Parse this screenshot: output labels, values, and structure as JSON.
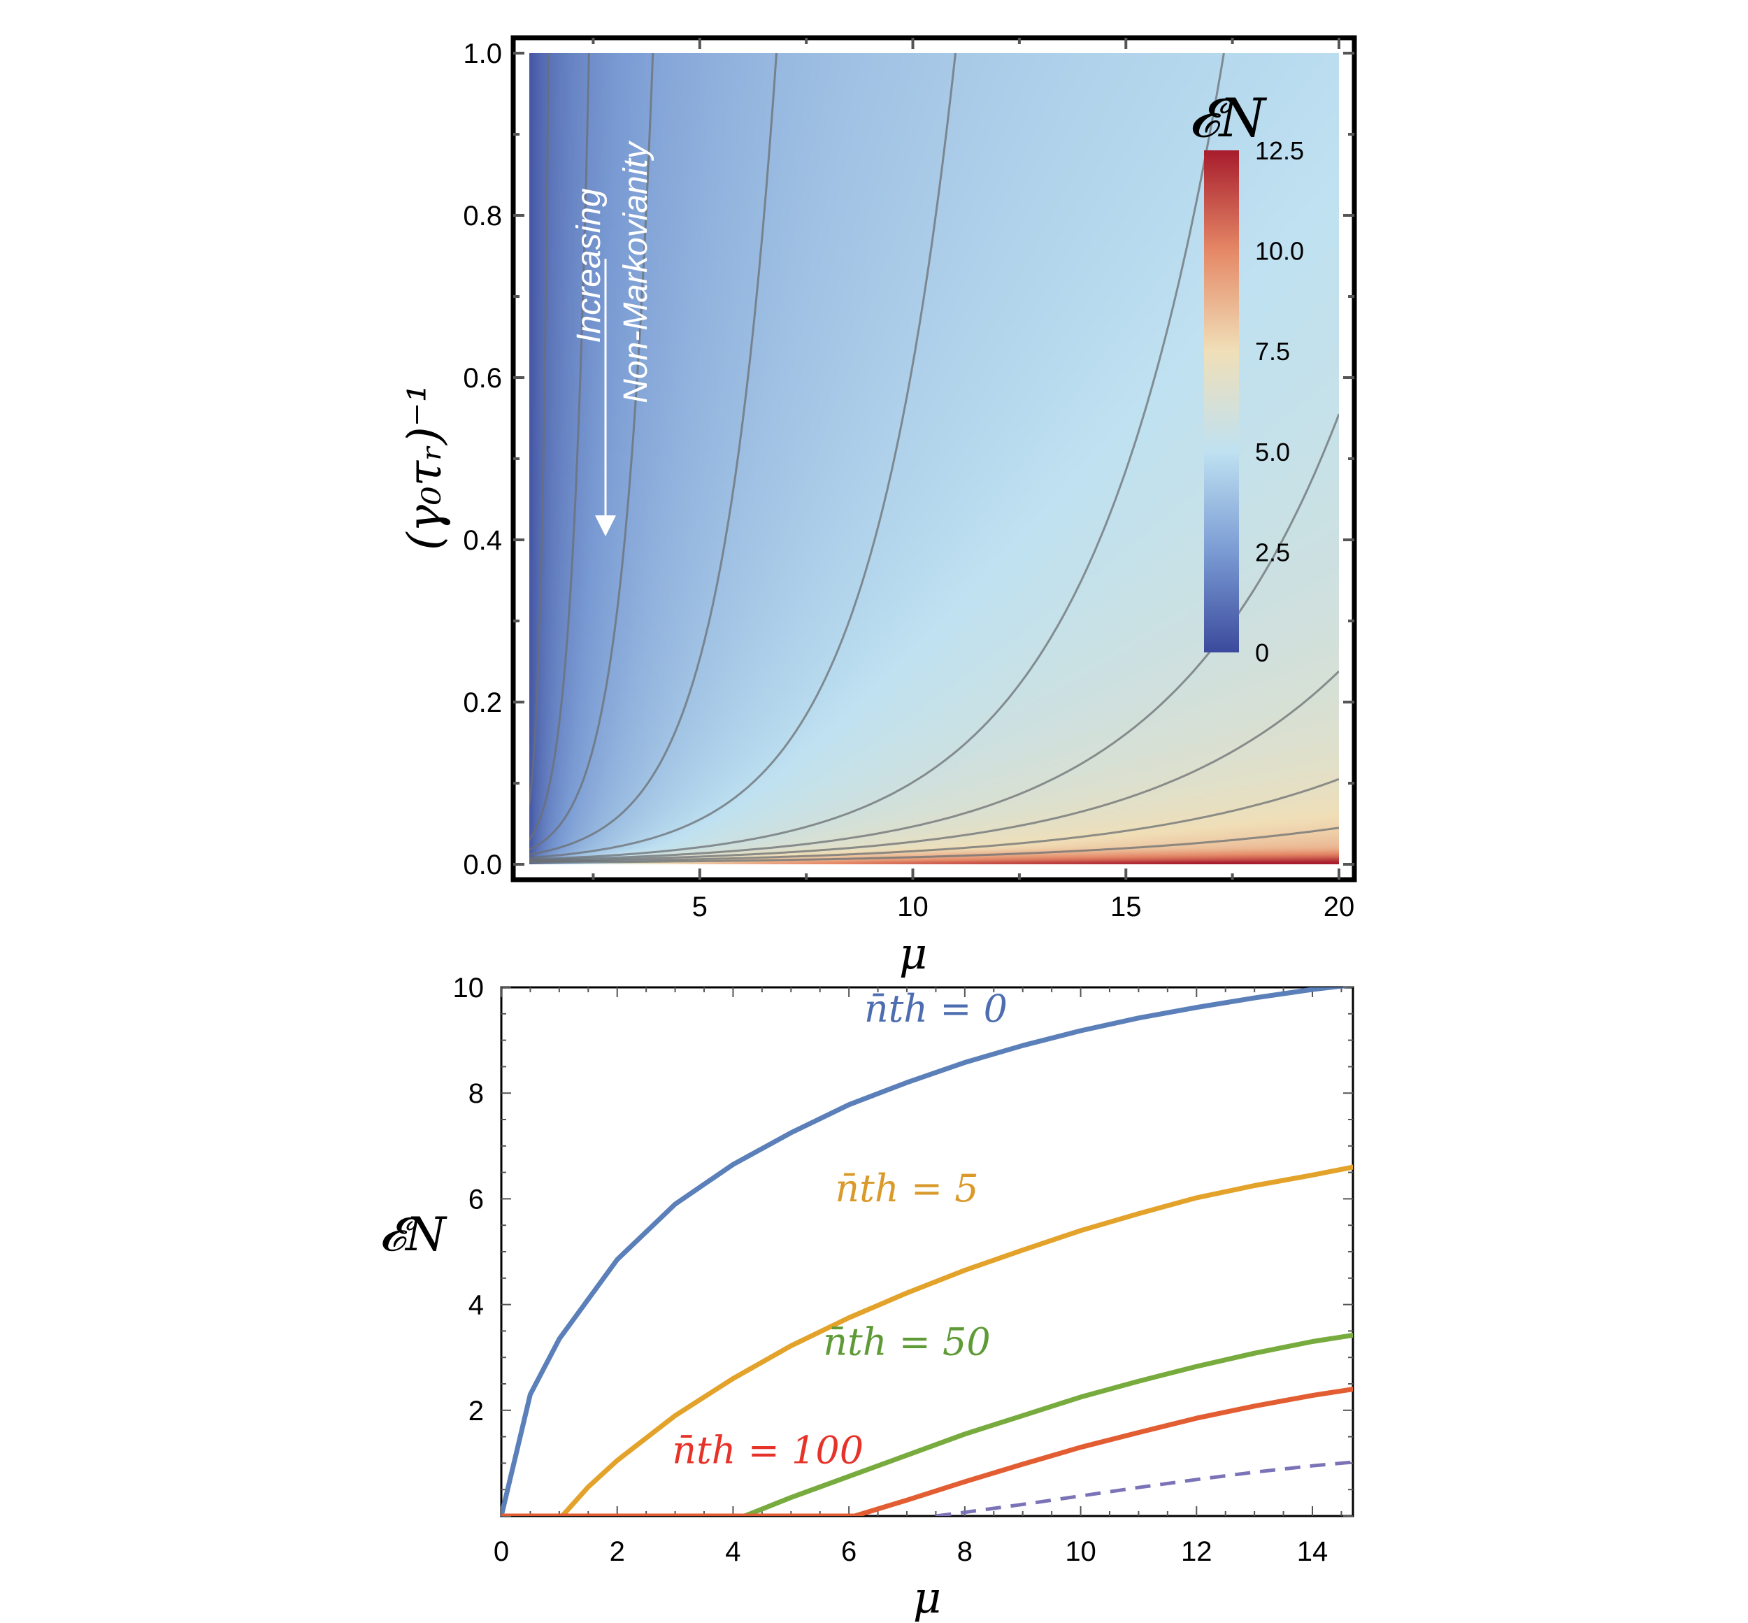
{
  "chart_data": [
    {
      "type": "heatmap",
      "title": "",
      "xlabel": "μ",
      "ylabel": "(γ₀τᵣ)⁻¹",
      "xlim": [
        1,
        20
      ],
      "ylim": [
        0,
        1
      ],
      "x_ticks": [
        "5",
        "10",
        "15",
        "20"
      ],
      "y_ticks": [
        "0.0",
        "0.2",
        "0.4",
        "0.6",
        "0.8",
        "1.0"
      ],
      "colorbar": {
        "title": "𝓔N",
        "range": [
          0,
          12.5
        ],
        "ticks": [
          "0",
          "2.5",
          "5.0",
          "7.5",
          "10.0",
          "12.5"
        ],
        "colors": [
          "#3b4a9c",
          "#7a9bd3",
          "#bfe1f1",
          "#f0dfb8",
          "#e58866",
          "#a71c2d"
        ]
      },
      "contour_lines": [
        {
          "y_at_mu_1": 0.073,
          "crosses_top_at_mu": 1.45
        },
        {
          "y_at_mu_1": 0.03,
          "crosses_top_at_mu": 2.4
        },
        {
          "y_at_mu_1": 0.018,
          "crosses_top_at_mu": 3.9
        },
        {
          "y_at_mu_1": 0.012,
          "crosses_top_at_mu": 6.8
        },
        {
          "y_at_mu_1": 0.008,
          "crosses_top_at_mu": 11.0
        },
        {
          "y_at_mu_1": 0.006,
          "crosses_top_at_mu": 17.3
        },
        {
          "y_at_mu_1": 0.005,
          "y_at_mu_20": 0.555
        },
        {
          "y_at_mu_1": 0.004,
          "y_at_mu_20": 0.238
        },
        {
          "y_at_mu_1": 0.003,
          "y_at_mu_20": 0.105
        },
        {
          "y_at_mu_1": 0.002,
          "y_at_mu_20": 0.045
        }
      ],
      "annotation": {
        "line1": "Increasing",
        "line2": "Non-Markovianity"
      },
      "grid": false
    },
    {
      "type": "line",
      "title": "",
      "xlabel": "μ",
      "ylabel": "𝓔N",
      "xlim": [
        0,
        14.7
      ],
      "ylim": [
        0,
        10
      ],
      "x_ticks": [
        "0",
        "2",
        "4",
        "6",
        "8",
        "10",
        "12",
        "14"
      ],
      "y_ticks": [
        "2",
        "4",
        "6",
        "8",
        "10"
      ],
      "series": [
        {
          "name": "n̄th = 0",
          "color": "#5b7fb9",
          "dashed": false,
          "x": [
            0,
            0.5,
            1,
            2,
            3,
            4,
            5,
            6,
            7,
            8,
            9,
            10,
            11,
            12,
            13,
            14,
            14.7
          ],
          "y": [
            0,
            2.3,
            3.35,
            4.85,
            5.9,
            6.65,
            7.25,
            7.78,
            8.2,
            8.58,
            8.9,
            9.18,
            9.42,
            9.62,
            9.8,
            9.96,
            10.05
          ]
        },
        {
          "name": "n̄th = 5",
          "color": "#e3a22a",
          "dashed": false,
          "x": [
            1.05,
            1.5,
            2,
            3,
            4,
            5,
            6,
            7,
            8,
            9,
            10,
            11,
            12,
            13,
            14,
            14.7
          ],
          "y": [
            0,
            0.55,
            1.05,
            1.9,
            2.6,
            3.22,
            3.75,
            4.22,
            4.65,
            5.03,
            5.4,
            5.72,
            6.02,
            6.25,
            6.45,
            6.6
          ]
        },
        {
          "name": "n̄th = 50",
          "color": "#78ab3e",
          "dashed": false,
          "x": [
            4.2,
            5,
            6,
            7,
            8,
            9,
            10,
            11,
            12,
            13,
            14,
            14.7
          ],
          "y": [
            0,
            0.35,
            0.75,
            1.15,
            1.55,
            1.9,
            2.25,
            2.55,
            2.83,
            3.08,
            3.3,
            3.42
          ]
        },
        {
          "name": "n̄th = 100",
          "color": "#e25d32",
          "dashed": false,
          "x": [
            6.1,
            7,
            8,
            9,
            10,
            11,
            12,
            13,
            14,
            14.7
          ],
          "y": [
            0,
            0.3,
            0.65,
            0.98,
            1.3,
            1.58,
            1.85,
            2.08,
            2.28,
            2.4
          ]
        },
        {
          "name": "",
          "color": "#7b73b8",
          "dashed": true,
          "x": [
            7.5,
            8,
            9,
            10,
            11,
            12,
            13,
            14,
            14.7
          ],
          "y": [
            0,
            0.07,
            0.22,
            0.38,
            0.54,
            0.69,
            0.83,
            0.95,
            1.02
          ]
        },
        {
          "name": "",
          "color": "#e25d32",
          "dashed": false,
          "x": [
            0,
            6.1
          ],
          "y": [
            0,
            0
          ]
        }
      ],
      "labels": [
        {
          "text": "n̄th = 0",
          "color": "#4e6db0"
        },
        {
          "text": "n̄th = 5",
          "color": "#d99a2b"
        },
        {
          "text": "n̄th = 50",
          "color": "#5e9a35"
        },
        {
          "text": "n̄th = 100",
          "color": "#e6332a"
        }
      ],
      "grid": false
    }
  ]
}
